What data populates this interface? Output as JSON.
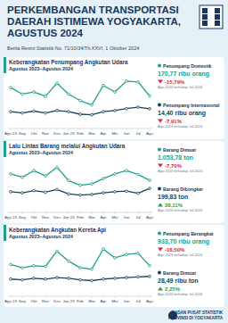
{
  "header": {
    "title_lines": [
      "PERKEMBANGAN TRANSPORTASI",
      "DAERAH ISTIMEWA YOGYAKARTA,",
      "AGUSTUS 2024"
    ],
    "subtitle": "Berita Resmi Statistik No. 71/10/34/Th.XXVI, 1 Oktober 2024"
  },
  "chart_data": [
    {
      "type": "line",
      "title": "Keberangkatan Penumpang Angkutan Udara",
      "subtitle": "Agustus 2023–Agustus 2024",
      "categories": [
        "Agu 23",
        "Sep",
        "Okt",
        "Nov",
        "Des",
        "Jan 24",
        "Feb",
        "Mar",
        "Apr",
        "Mei",
        "Jun",
        "Jul",
        "Agu"
      ],
      "series": [
        {
          "name": "Penumpang Domestik",
          "color": "#1f9e89",
          "values": [
            190,
            175,
            180,
            170,
            200,
            175,
            160,
            150,
            195,
            180,
            205,
            202.8,
            170.77
          ]
        },
        {
          "name": "Penumpang Internasional",
          "color": "#16425b",
          "axis": "y2",
          "values": [
            12,
            11,
            12.5,
            11,
            13,
            12,
            10,
            9.5,
            12,
            13,
            14.5,
            15.64,
            14.4
          ]
        }
      ],
      "ylim": [
        100,
        215
      ],
      "y2lim": [
        0,
        40
      ],
      "tick_labels": "x",
      "grid": false,
      "marker": "circle"
    },
    {
      "type": "line",
      "title": "Lalu Lintas Barang melalui Angkutan Udara",
      "subtitle": "Agustus 2023–Agustus 2024",
      "categories": [
        "Agu 23",
        "Sep",
        "Okt",
        "Nov",
        "Des",
        "Jan 24",
        "Feb",
        "Mar",
        "Apr",
        "Mei",
        "Jun",
        "Jul",
        "Agu"
      ],
      "series": [
        {
          "name": "Barang Dimuat",
          "color": "#1f9e89",
          "values": [
            1150,
            1100,
            1200,
            1120,
            1250,
            1050,
            980,
            1000,
            1080,
            1150,
            1200,
            1141.7,
            1053.78
          ]
        },
        {
          "name": "Barang Dibongkar",
          "color": "#16425b",
          "axis": "y2",
          "values": [
            170,
            160,
            180,
            165,
            190,
            150,
            140,
            145,
            160,
            170,
            175,
            156,
            199.83
          ]
        }
      ],
      "ylim": [
        600,
        1350
      ],
      "y2lim": [
        0,
        450
      ],
      "tick_labels": "x",
      "grid": false,
      "marker": "circle"
    },
    {
      "type": "line",
      "title": "Keberangkatan Angkutan Kereta Api",
      "subtitle": "Agustus 2023–Agustus 2024",
      "categories": [
        "Agu 23",
        "Sep",
        "Okt",
        "Nov",
        "Des",
        "Jan 24",
        "Feb",
        "Mar",
        "Apr",
        "Mei",
        "Jun",
        "Jul",
        "Agu"
      ],
      "series": [
        {
          "name": "Penumpang Berangkat",
          "color": "#1f9e89",
          "values": [
            950,
            900,
            930,
            920,
            1150,
            1000,
            900,
            880,
            1180,
            1050,
            1100,
            1118.2,
            933.7
          ]
        },
        {
          "name": "Barang Dimuat",
          "color": "#16425b",
          "axis": "y2",
          "values": [
            25,
            24,
            26,
            25,
            27,
            26,
            24,
            23,
            25,
            26,
            27,
            27.86,
            28.49
          ]
        }
      ],
      "ylim": [
        500,
        1250
      ],
      "y2lim": [
        5,
        70
      ],
      "tick_labels": "x",
      "grid": false,
      "marker": "circle"
    }
  ],
  "panels": [
    [
      {
        "value": "170,77 ribu orang",
        "change": "-15,79%",
        "note": "Agu 2024 terhadap Jul 2024"
      },
      {
        "value": "14,40 ribu orang",
        "change": "-7,91%",
        "note": "Agu 2024 terhadap Jul 2024"
      }
    ],
    [
      {
        "value": "1.053,78 ton",
        "change": "-7,70%",
        "note": "Agu 2024 terhadap Jul 2024"
      },
      {
        "value": "199,83 ton",
        "change": "28,11%",
        "note": "Agu 2024 terhadap Jul 2024"
      }
    ],
    [
      {
        "value": "933,70 ribu orang",
        "change": "-16,50%",
        "note": "Agu 2024 terhadap Jul 2024"
      },
      {
        "value": "28,49 ribu ton",
        "change": "2,25%",
        "note": "Agu 2024 terhadap Jul 2024"
      }
    ]
  ],
  "footer": {
    "lines": [
      "BADAN PUSAT STATISTIK",
      "PROVINSI DI YOGYAKARTA"
    ]
  }
}
